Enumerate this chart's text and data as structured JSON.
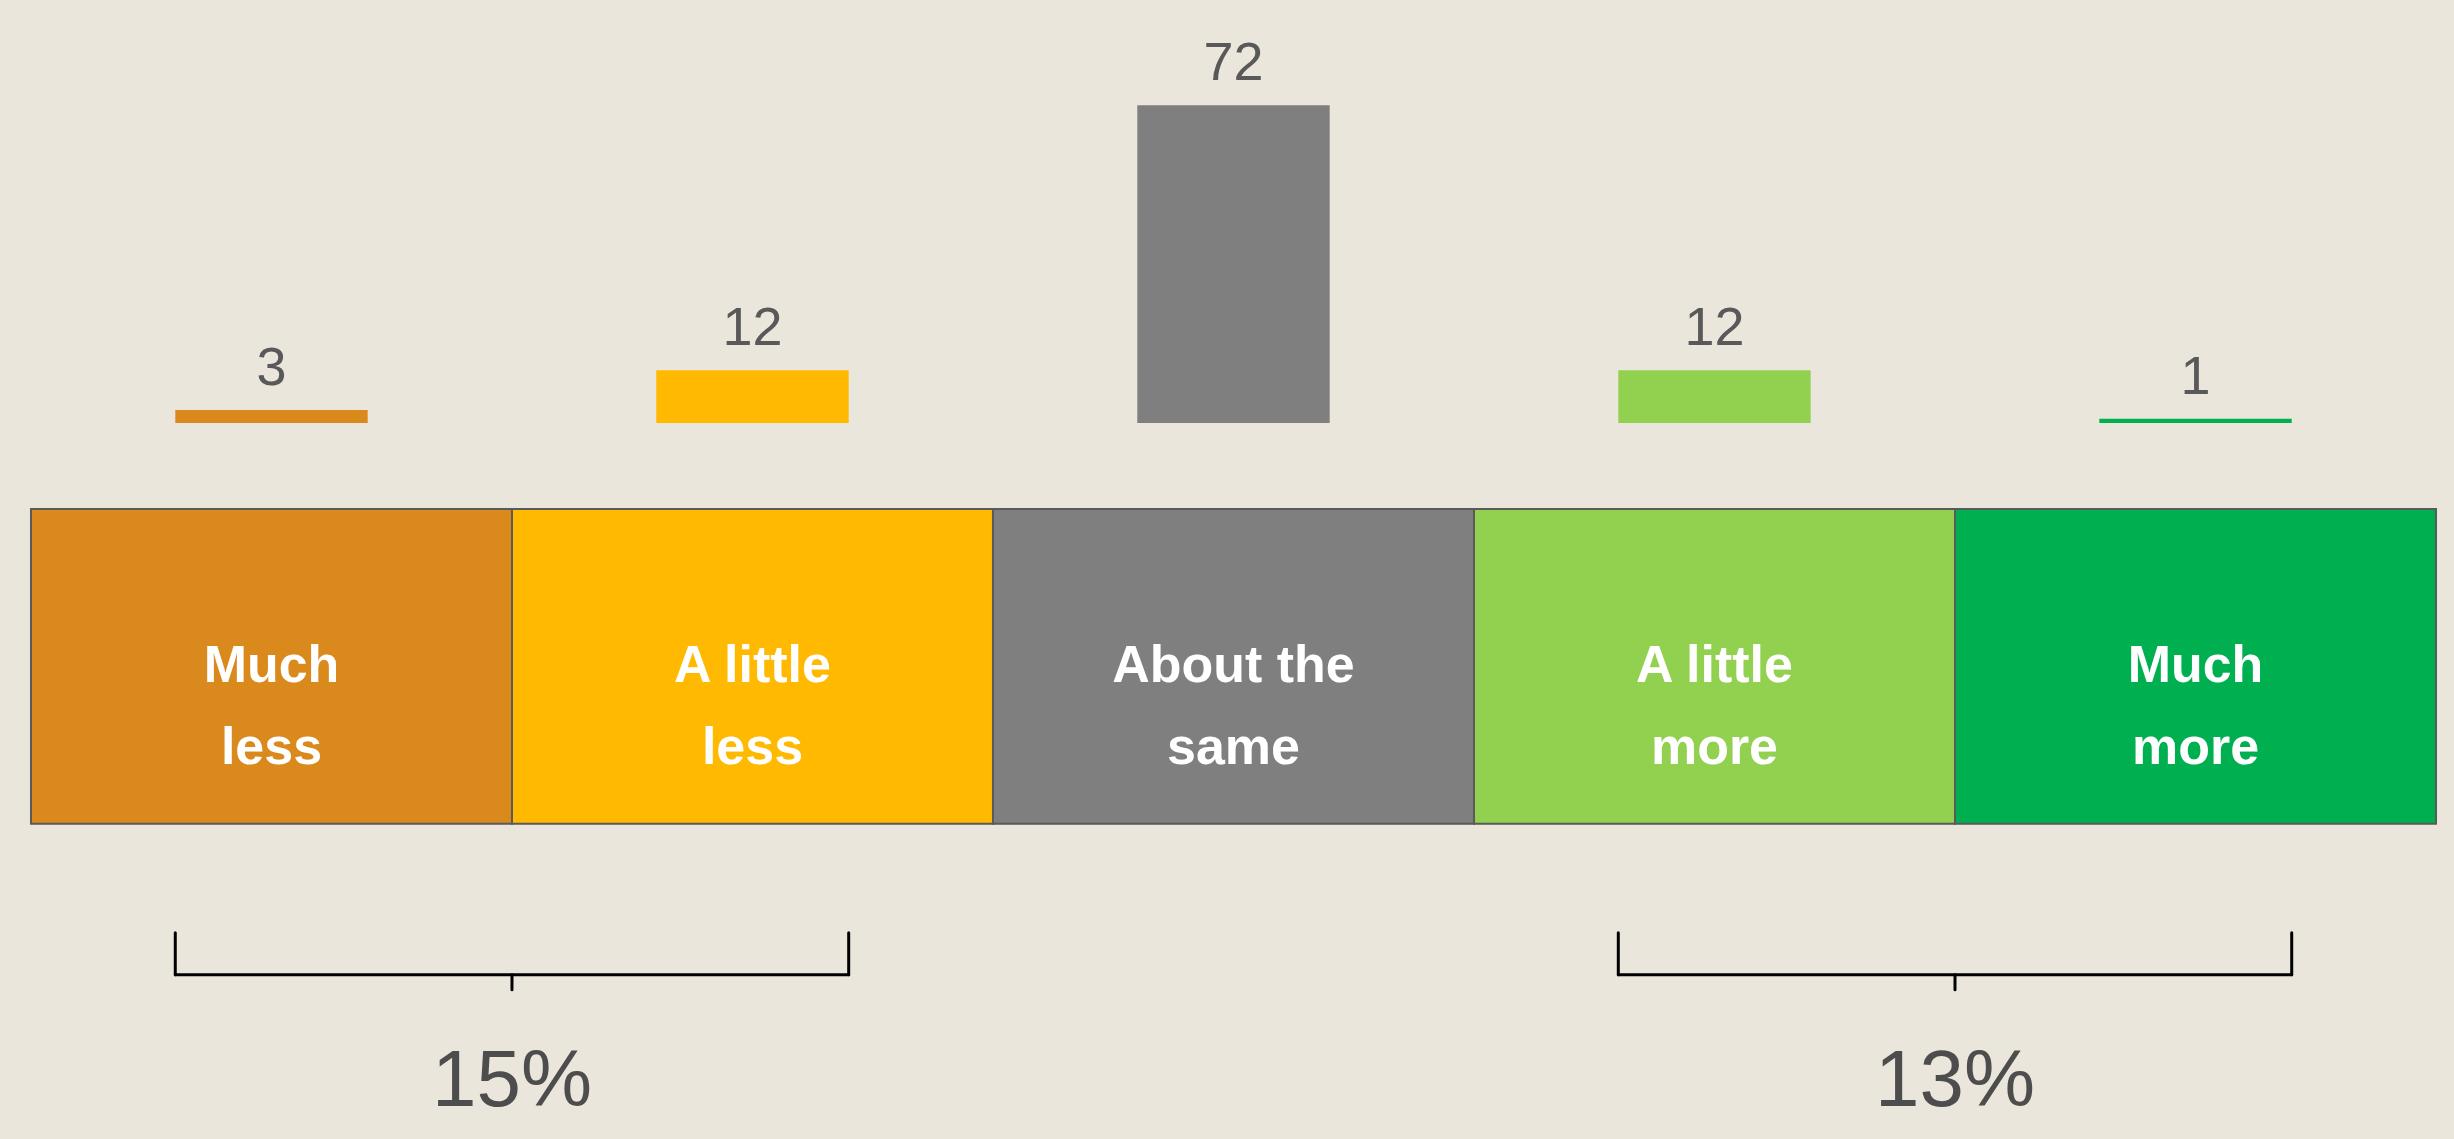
{
  "chart_data": {
    "type": "bar",
    "categories": [
      "Much less",
      "A little less",
      "About the same",
      "A little more",
      "Much more"
    ],
    "values": [
      3,
      12,
      72,
      12,
      1
    ],
    "colors": [
      "#da8a1c",
      "#ffb900",
      "#7f7f7f",
      "#92d050",
      "#00b050"
    ],
    "data_labels": true,
    "annotations": [
      "15%",
      "13%"
    ]
  }
}
